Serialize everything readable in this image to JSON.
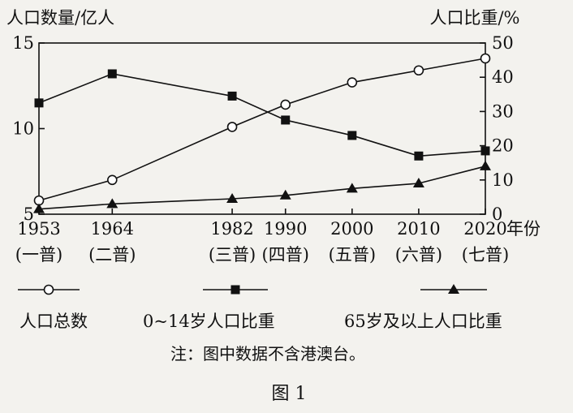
{
  "chart_data": {
    "type": "line",
    "ylabel_left": "人口数量/亿人",
    "ylabel_right": "人口比重/%",
    "xlabel_suffix": "年份",
    "left_ylim": [
      5,
      15
    ],
    "left_yticks": [
      "5",
      "10",
      "15"
    ],
    "right_ylim": [
      0,
      50
    ],
    "right_yticks": [
      "0",
      "10",
      "20",
      "30",
      "40",
      "50"
    ],
    "x": [
      1953,
      1964,
      1982,
      1990,
      2000,
      2010,
      2020
    ],
    "x_labels": [
      "1953",
      "1964",
      "1982",
      "1990",
      "2000",
      "2010",
      "2020"
    ],
    "x_sublabels": [
      "(一普)",
      "(二普)",
      "(三普)",
      "(四普)",
      "(五普)",
      "(六普)",
      "(七普)"
    ],
    "grid": false,
    "series": [
      {
        "name": "人口总数",
        "axis": "left",
        "marker": "circle",
        "values": [
          5.8,
          7.0,
          10.1,
          11.4,
          12.7,
          13.4,
          14.1
        ]
      },
      {
        "name": "0~14岁人口比重",
        "axis": "right",
        "marker": "square",
        "values": [
          32.5,
          41.0,
          34.5,
          27.5,
          23.0,
          17.0,
          18.5
        ]
      },
      {
        "name": "65岁及以上人口比重",
        "axis": "right",
        "marker": "triangle",
        "values": [
          1.5,
          3.0,
          4.5,
          5.5,
          7.5,
          9.0,
          14.0
        ]
      }
    ],
    "legend_placement": "bottom",
    "note": "注：图中数据不含港澳台。",
    "caption": "图 1"
  }
}
